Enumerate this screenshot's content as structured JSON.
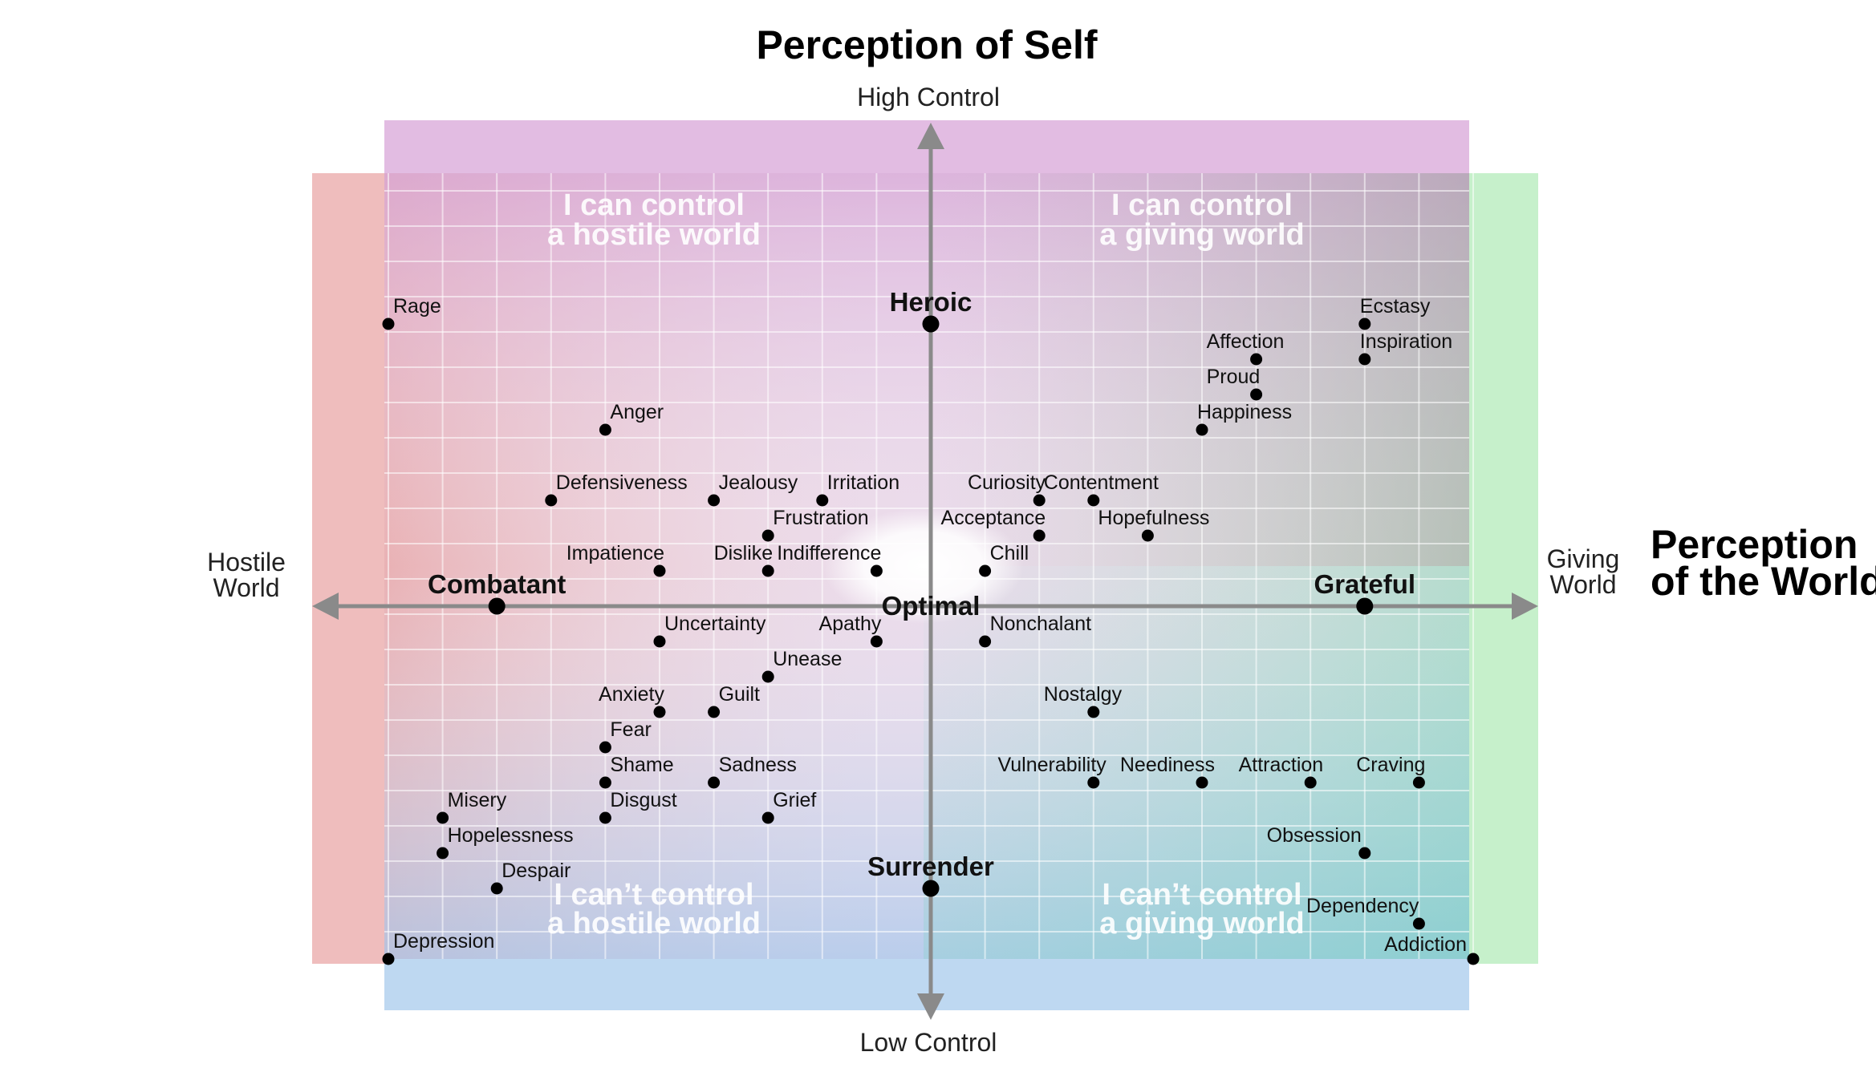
{
  "titles": {
    "top": "Perception of Self",
    "right_line1": "Perception",
    "right_line2": "of the World"
  },
  "axis_labels": {
    "high": "High Control",
    "low": "Low Control",
    "hostile_line1": "Hostile",
    "hostile_line2": "World",
    "giving_line1": "Giving",
    "giving_line2": "World"
  },
  "quadrant_labels": {
    "top_left": [
      "I can control",
      "a hostile world"
    ],
    "top_right": [
      "I can control",
      "a giving world"
    ],
    "bottom_left": [
      "I can’t control",
      "a hostile world"
    ],
    "bottom_right": [
      "I can’t control",
      "a giving world"
    ]
  },
  "colors": {
    "hostile": "#e8a3a3",
    "giving": "#a8e6b0",
    "high_control": "#d8a8d8",
    "low_control": "#a9c9ec",
    "axis": "#8a8a8a",
    "dot": "#000000"
  },
  "chart_data": {
    "type": "scatter",
    "x_axis": {
      "negative": "Hostile World",
      "positive": "Giving World",
      "range": [
        -10,
        10
      ]
    },
    "y_axis": {
      "negative": "Low Control",
      "positive": "High Control",
      "range": [
        -10,
        10
      ]
    },
    "grid": true,
    "anchors": [
      {
        "name": "Heroic",
        "x": 0,
        "y": 8
      },
      {
        "name": "Combatant",
        "x": -8,
        "y": 0
      },
      {
        "name": "Grateful",
        "x": 8,
        "y": 0
      },
      {
        "name": "Surrender",
        "x": 0,
        "y": -8
      },
      {
        "name": "Optimal",
        "x": 0,
        "y": 0
      }
    ],
    "emotions": [
      {
        "name": "Rage",
        "x": -10,
        "y": 8
      },
      {
        "name": "Anger",
        "x": -6,
        "y": 5
      },
      {
        "name": "Defensiveness",
        "x": -7,
        "y": 3
      },
      {
        "name": "Jealousy",
        "x": -4,
        "y": 3
      },
      {
        "name": "Irritation",
        "x": -2,
        "y": 3
      },
      {
        "name": "Frustration",
        "x": -3,
        "y": 2
      },
      {
        "name": "Impatience",
        "x": -5,
        "y": 1
      },
      {
        "name": "Dislike",
        "x": -3,
        "y": 1
      },
      {
        "name": "Indifference",
        "x": -1,
        "y": 1
      },
      {
        "name": "Ecstasy",
        "x": 8,
        "y": 8
      },
      {
        "name": "Affection",
        "x": 6,
        "y": 7
      },
      {
        "name": "Inspiration",
        "x": 8,
        "y": 7
      },
      {
        "name": "Proud",
        "x": 6,
        "y": 6
      },
      {
        "name": "Happiness",
        "x": 5,
        "y": 5
      },
      {
        "name": "Curiosity",
        "x": 2,
        "y": 3
      },
      {
        "name": "Contentment",
        "x": 3,
        "y": 3
      },
      {
        "name": "Acceptance",
        "x": 2,
        "y": 2
      },
      {
        "name": "Hopefulness",
        "x": 4,
        "y": 2
      },
      {
        "name": "Chill",
        "x": 1,
        "y": 1
      },
      {
        "name": "Uncertainty",
        "x": -5,
        "y": -1
      },
      {
        "name": "Apathy",
        "x": -1,
        "y": -1
      },
      {
        "name": "Unease",
        "x": -3,
        "y": -2
      },
      {
        "name": "Anxiety",
        "x": -5,
        "y": -3
      },
      {
        "name": "Guilt",
        "x": -4,
        "y": -3
      },
      {
        "name": "Fear",
        "x": -6,
        "y": -4
      },
      {
        "name": "Shame",
        "x": -6,
        "y": -5
      },
      {
        "name": "Sadness",
        "x": -4,
        "y": -5
      },
      {
        "name": "Disgust",
        "x": -6,
        "y": -6
      },
      {
        "name": "Grief",
        "x": -3,
        "y": -6
      },
      {
        "name": "Misery",
        "x": -9,
        "y": -6
      },
      {
        "name": "Hopelessness",
        "x": -9,
        "y": -7
      },
      {
        "name": "Despair",
        "x": -8,
        "y": -8
      },
      {
        "name": "Depression",
        "x": -10,
        "y": -10
      },
      {
        "name": "Nonchalant",
        "x": 1,
        "y": -1
      },
      {
        "name": "Nostalgy",
        "x": 3,
        "y": -3
      },
      {
        "name": "Vulnerability",
        "x": 3,
        "y": -5
      },
      {
        "name": "Neediness",
        "x": 5,
        "y": -5
      },
      {
        "name": "Attraction",
        "x": 7,
        "y": -5
      },
      {
        "name": "Craving",
        "x": 9,
        "y": -5
      },
      {
        "name": "Obsession",
        "x": 8,
        "y": -7
      },
      {
        "name": "Dependency",
        "x": 9,
        "y": -9
      },
      {
        "name": "Addiction",
        "x": 10,
        "y": -10
      }
    ]
  }
}
